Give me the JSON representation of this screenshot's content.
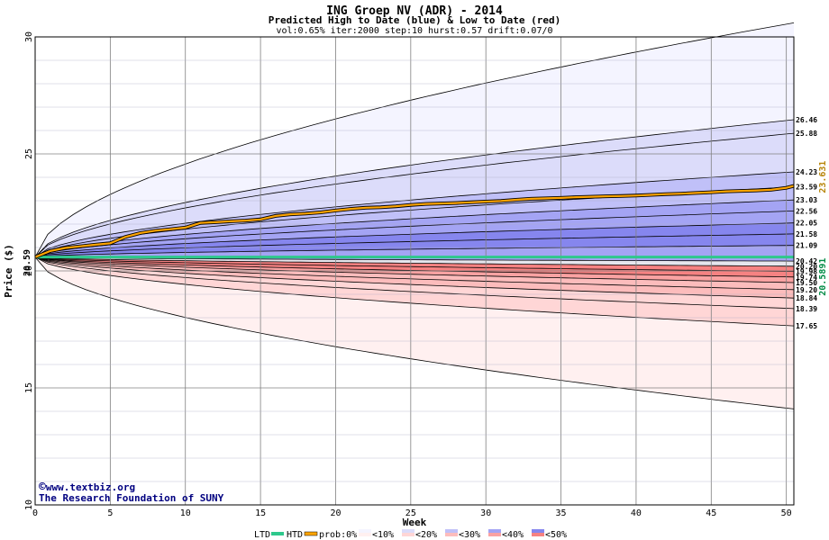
{
  "chart_data": {
    "type": "area",
    "title": "ING Groep NV (ADR) - 2014",
    "subtitle": "Predicted High to Date (blue) &  Low to Date (red)",
    "params": "vol:0.65% iter:2000 step:10 hurst:0.57 drift:0.07/0",
    "xlabel": "Week",
    "ylabel": "Price ($)",
    "xlim": [
      0,
      50.5
    ],
    "ylim": [
      10,
      30
    ],
    "x_ticks": [
      0,
      5,
      10,
      15,
      20,
      25,
      30,
      35,
      40,
      45,
      50
    ],
    "y_ticks": [
      10,
      15,
      20,
      25,
      30
    ],
    "grid": true,
    "start_price": "20.59",
    "start_value": 20.59,
    "htd_label": "23.631",
    "ltd_label": "20.5891",
    "watermark_line1": "www.textbiz.org",
    "watermark_line2": "The Research Foundation of SUNY",
    "copyright_symbol": "©",
    "high_bands": [
      {
        "label": "26.46",
        "end": 26.46
      },
      {
        "label": "25.88",
        "end": 25.88
      },
      {
        "label": "24.23",
        "end": 24.23
      },
      {
        "label": "23.59",
        "end": 23.59
      },
      {
        "label": "23.03",
        "end": 23.03
      },
      {
        "label": "22.56",
        "end": 22.56
      },
      {
        "label": "22.05",
        "end": 22.05
      },
      {
        "label": "21.58",
        "end": 21.58
      },
      {
        "label": "21.09",
        "end": 21.09
      },
      {
        "label": "20.42",
        "end": 20.42
      }
    ],
    "low_bands": [
      {
        "label": "20.20",
        "end": 20.2
      },
      {
        "label": "19.98",
        "end": 19.98
      },
      {
        "label": "19.74",
        "end": 19.74
      },
      {
        "label": "19.50",
        "end": 19.5
      },
      {
        "label": "19.20",
        "end": 19.2
      },
      {
        "label": "18.84",
        "end": 18.84
      },
      {
        "label": "18.39",
        "end": 18.39
      },
      {
        "label": "17.65",
        "end": 17.65
      }
    ],
    "outer_high_end": 30.6,
    "outer_low_end": 14.1,
    "htd_series": {
      "x": [
        0,
        1,
        2,
        3,
        4,
        5,
        6,
        7,
        8,
        9,
        10,
        11,
        12,
        13,
        14,
        15,
        16,
        17,
        18,
        19,
        20,
        21,
        22,
        23,
        24,
        25,
        26,
        27,
        28,
        29,
        30,
        31,
        32,
        33,
        34,
        35,
        36,
        37,
        38,
        39,
        40,
        41,
        42,
        43,
        44,
        45,
        46,
        47,
        48,
        49,
        50,
        50.5
      ],
      "y": [
        20.59,
        20.85,
        20.98,
        21.05,
        21.12,
        21.18,
        21.45,
        21.62,
        21.72,
        21.78,
        21.85,
        22.05,
        22.08,
        22.12,
        22.15,
        22.2,
        22.35,
        22.42,
        22.45,
        22.5,
        22.58,
        22.65,
        22.7,
        22.72,
        22.76,
        22.82,
        22.86,
        22.88,
        22.9,
        22.93,
        22.96,
        22.99,
        23.04,
        23.08,
        23.1,
        23.12,
        23.15,
        23.17,
        23.19,
        23.2,
        23.22,
        23.25,
        23.28,
        23.3,
        23.33,
        23.36,
        23.4,
        23.42,
        23.44,
        23.47,
        23.55,
        23.63
      ]
    },
    "ltd_value": 20.5891,
    "legend": {
      "ltd": "LTD",
      "htd": "HTD",
      "prob_prefix": "prob:0%",
      "items": [
        "<10%",
        "<20%",
        "<30%",
        "<40%",
        "<50%"
      ],
      "colors_blue": [
        "#f4f4ff",
        "#dcdcfa",
        "#c0c0f8",
        "#a4a4f4",
        "#8686ee"
      ],
      "colors_red": [
        "#fff0f0",
        "#ffd6d6",
        "#fcbcbc",
        "#faa2a2",
        "#f68282"
      ]
    },
    "colors": {
      "htd": "#ffa500",
      "ltd": "#2ec88c",
      "grid": "#808080",
      "htd_label": "#b8860b",
      "ltd_label": "#008b45",
      "watermark": "#000080"
    }
  }
}
